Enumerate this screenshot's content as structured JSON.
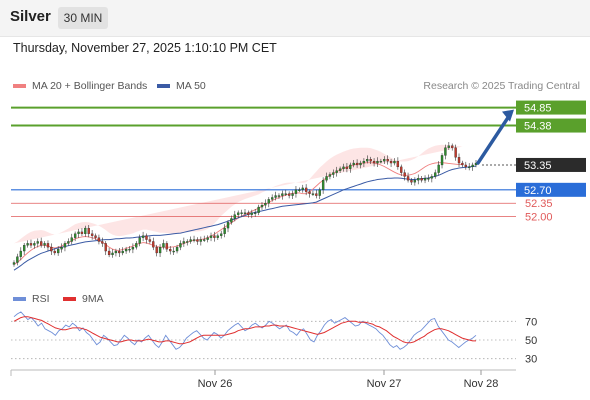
{
  "header": {
    "title": "Silver",
    "timeframe": "30 MIN"
  },
  "datetime": "Thursday, November 27, 2025 1:10:10 PM CET",
  "legend": {
    "ma_bb_label": "MA 20 + Bollinger Bands",
    "ma50_label": "MA 50",
    "rsi_label": "RSI",
    "rsi_ma_label": "9MA"
  },
  "credit": "Research © 2025 Trading Central",
  "colors": {
    "up_target": "#5aa02c",
    "resistance_red": "#e05a5a",
    "support_blue": "#2a6dd8",
    "ma50": "#3b5ba5",
    "ma20": "#f08080",
    "bb_fill": "#fde2e2",
    "current_price": "#2b2b2b",
    "rsi": "#6f8fd8",
    "rsi_ma": "#e03030"
  },
  "chart_data": [
    {
      "type": "candlestick",
      "title": "Silver",
      "x_ticks": [
        "Nov 26",
        "Nov 27",
        "Nov 28"
      ],
      "y_range": [
        50.5,
        55.1
      ],
      "levels": [
        {
          "label": "54.85",
          "value": 54.85,
          "kind": "target"
        },
        {
          "label": "54.38",
          "value": 54.38,
          "kind": "target"
        },
        {
          "label": "53.35",
          "value": 53.35,
          "kind": "current"
        },
        {
          "label": "52.70",
          "value": 52.7,
          "kind": "support"
        },
        {
          "label": "52.35",
          "value": 52.35,
          "kind": "resistance"
        },
        {
          "label": "52.00",
          "value": 52.0,
          "kind": "resistance"
        }
      ],
      "series": {
        "close": [
          50.8,
          50.95,
          51.1,
          51.25,
          51.3,
          51.25,
          51.3,
          51.35,
          51.25,
          51.3,
          51.2,
          51.1,
          51.05,
          51.15,
          51.2,
          51.3,
          51.35,
          51.45,
          51.55,
          51.6,
          51.55,
          51.7,
          51.55,
          51.5,
          51.45,
          51.35,
          51.3,
          51.1,
          51.0,
          51.05,
          51.1,
          51.05,
          51.1,
          51.15,
          51.15,
          51.2,
          51.3,
          51.45,
          51.5,
          51.4,
          51.35,
          51.2,
          51.05,
          51.2,
          51.3,
          51.15,
          51.1,
          51.1,
          51.2,
          51.3,
          51.35,
          51.35,
          51.4,
          51.4,
          51.35,
          51.4,
          51.4,
          51.45,
          51.5,
          51.45,
          51.5,
          51.55,
          51.7,
          51.85,
          51.95,
          52.05,
          52.1,
          52.1,
          52.1,
          52.05,
          52.1,
          52.1,
          52.25,
          52.3,
          52.35,
          52.45,
          52.5,
          52.55,
          52.55,
          52.6,
          52.6,
          52.55,
          52.6,
          52.7,
          52.7,
          52.75,
          52.65,
          52.6,
          52.6,
          52.55,
          52.7,
          52.95,
          53.05,
          53.1,
          53.15,
          53.2,
          53.25,
          53.3,
          53.25,
          53.35,
          53.4,
          53.35,
          53.4,
          53.45,
          53.5,
          53.45,
          53.4,
          53.45,
          53.45,
          53.5,
          53.45,
          53.4,
          53.45,
          53.3,
          53.15,
          53.05,
          52.95,
          52.9,
          52.95,
          53.0,
          52.95,
          53.0,
          53.0,
          53.05,
          53.15,
          53.35,
          53.6,
          53.8,
          53.85,
          53.8,
          53.55,
          53.4,
          53.35,
          53.3,
          53.3,
          53.35,
          53.4
        ],
        "ma50": [
          50.6,
          50.66,
          50.72,
          50.79,
          50.85,
          50.9,
          50.95,
          51.0,
          51.04,
          51.07,
          51.1,
          51.13,
          51.16,
          51.18,
          51.2,
          51.22,
          51.24,
          51.26,
          51.28,
          51.3,
          51.32,
          51.34,
          51.35,
          51.36,
          51.37,
          51.38,
          51.39,
          51.4,
          51.4,
          51.41,
          51.42,
          51.42,
          51.43,
          51.44,
          51.44,
          51.45,
          51.46,
          51.47,
          51.48,
          51.49,
          51.5,
          51.51,
          51.51,
          51.51,
          51.52,
          51.53,
          51.54,
          51.55,
          51.56,
          51.57,
          51.59,
          51.61,
          51.63,
          51.65,
          51.67,
          51.69,
          51.71,
          51.73,
          51.75,
          51.77,
          51.79,
          51.82,
          51.85,
          51.88,
          51.91,
          51.94,
          51.97,
          52.0,
          52.03,
          52.06,
          52.09,
          52.11,
          52.13,
          52.15,
          52.17,
          52.19,
          52.21,
          52.23,
          52.25,
          52.27,
          52.28,
          52.29,
          52.3,
          52.31,
          52.32,
          52.33,
          52.34,
          52.35,
          52.36,
          52.38,
          52.42,
          52.46,
          52.5,
          52.54,
          52.58,
          52.62,
          52.66,
          52.7,
          52.73,
          52.76,
          52.79,
          52.82,
          52.85,
          52.88,
          52.91,
          52.93,
          52.95,
          52.97,
          52.98,
          52.99,
          53.0,
          53.0,
          53.01,
          53.01,
          53.0,
          52.99,
          52.98,
          52.97,
          52.97,
          52.98,
          52.99,
          53.0,
          53.01,
          53.03,
          53.05,
          53.08,
          53.12,
          53.16,
          53.2,
          53.23,
          53.25,
          53.27,
          53.28,
          53.29,
          53.3,
          53.31,
          53.32
        ],
        "ma20": [
          50.75,
          50.8,
          50.88,
          50.97,
          51.05,
          51.12,
          51.18,
          51.22,
          51.25,
          51.25,
          51.23,
          51.2,
          51.18,
          51.2,
          51.23,
          51.28,
          51.32,
          51.37,
          51.42,
          51.45,
          51.47,
          51.48,
          51.47,
          51.45,
          51.42,
          51.38,
          51.33,
          51.27,
          51.2,
          51.15,
          51.12,
          51.12,
          51.14,
          51.17,
          51.2,
          51.23,
          51.27,
          51.3,
          51.32,
          51.31,
          51.28,
          51.25,
          51.22,
          51.2,
          51.2,
          51.2,
          51.2,
          51.21,
          51.23,
          51.26,
          51.3,
          51.33,
          51.36,
          51.38,
          51.39,
          51.4,
          51.42,
          51.45,
          51.49,
          51.54,
          51.6,
          51.66,
          51.72,
          51.78,
          51.84,
          51.9,
          51.96,
          52.01,
          52.06,
          52.1,
          52.14,
          52.18,
          52.22,
          52.27,
          52.32,
          52.37,
          52.42,
          52.46,
          52.5,
          52.53,
          52.56,
          52.59,
          52.61,
          52.62,
          52.62,
          52.6,
          52.6,
          52.65,
          52.72,
          52.8,
          52.88,
          52.95,
          53.02,
          53.08,
          53.13,
          53.18,
          53.22,
          53.26,
          53.29,
          53.32,
          53.35,
          53.37,
          53.39,
          53.4,
          53.41,
          53.41,
          53.4,
          53.38,
          53.35,
          53.31,
          53.26,
          53.21,
          53.16,
          53.12,
          53.09,
          53.08,
          53.08,
          53.1,
          53.13,
          53.18,
          53.24,
          53.3,
          53.35,
          53.38,
          53.4,
          53.41,
          53.41,
          53.4,
          53.39,
          53.38,
          53.37,
          53.36,
          53.36
        ],
        "bb_width": [
          0.55,
          0.55,
          0.54,
          0.52,
          0.5,
          0.48,
          0.45,
          0.42,
          0.4,
          0.38,
          0.36,
          0.35,
          0.35,
          0.35,
          0.36,
          0.36,
          0.37,
          0.38,
          0.38,
          0.38,
          0.38,
          0.38,
          0.38,
          0.38,
          0.38,
          0.38,
          0.38,
          0.38,
          0.38,
          0.38,
          0.38,
          0.37,
          0.36,
          0.35,
          0.34,
          0.33,
          0.33,
          0.33,
          0.34,
          0.35,
          0.36,
          0.37,
          0.38,
          0.38,
          0.38,
          0.37,
          0.36,
          0.34,
          0.32,
          0.3,
          0.28,
          0.26,
          0.24,
          0.23,
          0.22,
          0.22,
          0.22,
          0.23,
          0.25,
          0.28,
          0.32,
          0.36,
          0.38,
          0.4,
          0.42,
          0.42,
          0.42,
          0.41,
          0.4,
          0.39,
          0.38,
          0.37,
          0.36,
          0.36,
          0.35,
          0.35,
          0.34,
          0.34,
          0.33,
          0.33,
          0.32,
          0.3,
          0.28,
          0.27,
          0.27,
          0.28,
          0.3,
          0.33,
          0.36,
          0.38,
          0.4,
          0.41,
          0.42,
          0.43,
          0.44,
          0.44,
          0.44,
          0.44,
          0.44,
          0.44,
          0.43,
          0.42,
          0.41,
          0.4,
          0.39,
          0.38,
          0.36,
          0.35,
          0.34,
          0.33,
          0.33,
          0.33,
          0.33,
          0.34,
          0.35,
          0.36,
          0.37,
          0.38,
          0.39,
          0.4,
          0.41,
          0.42,
          0.43,
          0.44,
          0.45,
          0.46,
          0.47,
          0.47,
          0.48,
          0.48,
          0.48,
          0.48,
          0.47,
          0.47,
          0.46,
          0.45,
          0.45
        ]
      }
    },
    {
      "type": "line",
      "title": "RSI",
      "y_ticks": [
        70,
        50,
        30
      ],
      "y_range": [
        20,
        80
      ],
      "series": [
        {
          "name": "RSI",
          "values": [
            75,
            78,
            80,
            76,
            72,
            74,
            70,
            65,
            68,
            62,
            60,
            58,
            55,
            60,
            62,
            66,
            64,
            68,
            65,
            60,
            63,
            58,
            55,
            50,
            45,
            48,
            55,
            52,
            48,
            44,
            45,
            50,
            55,
            52,
            48,
            45,
            50,
            48,
            52,
            55,
            50,
            45,
            42,
            48,
            55,
            50,
            45,
            40,
            42,
            46,
            52,
            55,
            58,
            60,
            56,
            52,
            50,
            54,
            58,
            56,
            52,
            55,
            60,
            63,
            66,
            68,
            64,
            60,
            62,
            66,
            68,
            65,
            63,
            66,
            70,
            68,
            65,
            62,
            64,
            66,
            60,
            58,
            55,
            60,
            62,
            56,
            50,
            48,
            55,
            60,
            66,
            70,
            72,
            68,
            70,
            72,
            74,
            71,
            68,
            65,
            66,
            70,
            68,
            66,
            64,
            62,
            58,
            55,
            50,
            45,
            42,
            44,
            40,
            42,
            45,
            50,
            55,
            58,
            60,
            64,
            68,
            72,
            73,
            65,
            60,
            55,
            50,
            48,
            45,
            42,
            45,
            48,
            50,
            52,
            55
          ]
        },
        {
          "name": "9MA",
          "values": [
            70,
            72,
            74,
            75,
            75,
            74,
            73,
            72,
            71,
            69,
            67,
            65,
            63,
            62,
            61,
            61,
            62,
            63,
            63,
            63,
            62,
            61,
            59,
            57,
            55,
            53,
            52,
            51,
            50,
            49,
            48,
            48,
            49,
            50,
            50,
            49,
            49,
            49,
            50,
            51,
            50,
            49,
            48,
            48,
            49,
            49,
            48,
            47,
            46,
            46,
            47,
            48,
            50,
            52,
            54,
            55,
            55,
            55,
            55,
            55,
            55,
            55,
            56,
            57,
            58,
            60,
            61,
            62,
            62,
            63,
            64,
            64,
            64,
            65,
            65,
            66,
            66,
            65,
            65,
            65,
            64,
            63,
            62,
            61,
            60,
            59,
            58,
            57,
            56,
            57,
            58,
            60,
            62,
            64,
            66,
            68,
            69,
            70,
            70,
            70,
            69,
            69,
            69,
            68,
            67,
            65,
            64,
            62,
            60,
            57,
            54,
            52,
            50,
            48,
            47,
            47,
            48,
            50,
            52,
            54,
            57,
            59,
            61,
            62,
            62,
            61,
            60,
            58,
            56,
            54,
            52,
            51,
            50,
            49,
            49
          ]
        }
      ]
    }
  ]
}
